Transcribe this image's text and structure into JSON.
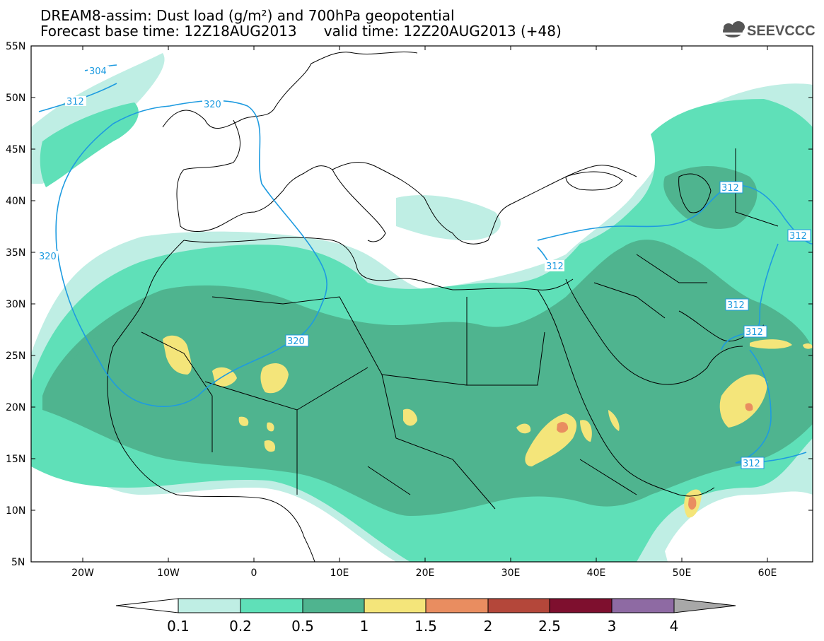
{
  "header": {
    "title_line1": "DREAM8-assim: Dust load (g/m²) and 700hPa geopotential",
    "title_line2": "Forecast base time: 12Z18AUG2013      valid time: 12Z20AUG2013 (+48)",
    "logo_text": "SEEVCCC"
  },
  "axes": {
    "lat_labels": [
      "55N",
      "50N",
      "45N",
      "40N",
      "35N",
      "30N",
      "25N",
      "20N",
      "15N",
      "10N",
      "5N"
    ],
    "lon_labels": [
      "20W",
      "10W",
      "0",
      "10E",
      "20E",
      "30E",
      "40E",
      "50E",
      "60E"
    ]
  },
  "colorbar": {
    "labels": [
      "0.1",
      "0.2",
      "0.5",
      "1",
      "1.5",
      "2",
      "2.5",
      "3",
      "4"
    ],
    "colors": [
      "#bfeee4",
      "#5fe0b8",
      "#4fb48f",
      "#f4e57a",
      "#e98d60",
      "#b4473a",
      "#7e0f2e",
      "#8e6aa3"
    ],
    "under_color": "#ffffff",
    "over_color": "#a8a8a8"
  },
  "contours": {
    "color": "#1e9be0",
    "labels": [
      "304",
      "312",
      "320",
      "312",
      "312",
      "312",
      "312",
      "312",
      "320",
      "312"
    ]
  },
  "colors": {
    "land_lines": "#000000",
    "dust_low": "#bfeee4",
    "dust_mid": "#5fe0b8",
    "dust_high": "#4fb48f",
    "dust_peak": "#f4e57a",
    "dust_max": "#e98d60",
    "dust_top": "#b4473a"
  }
}
